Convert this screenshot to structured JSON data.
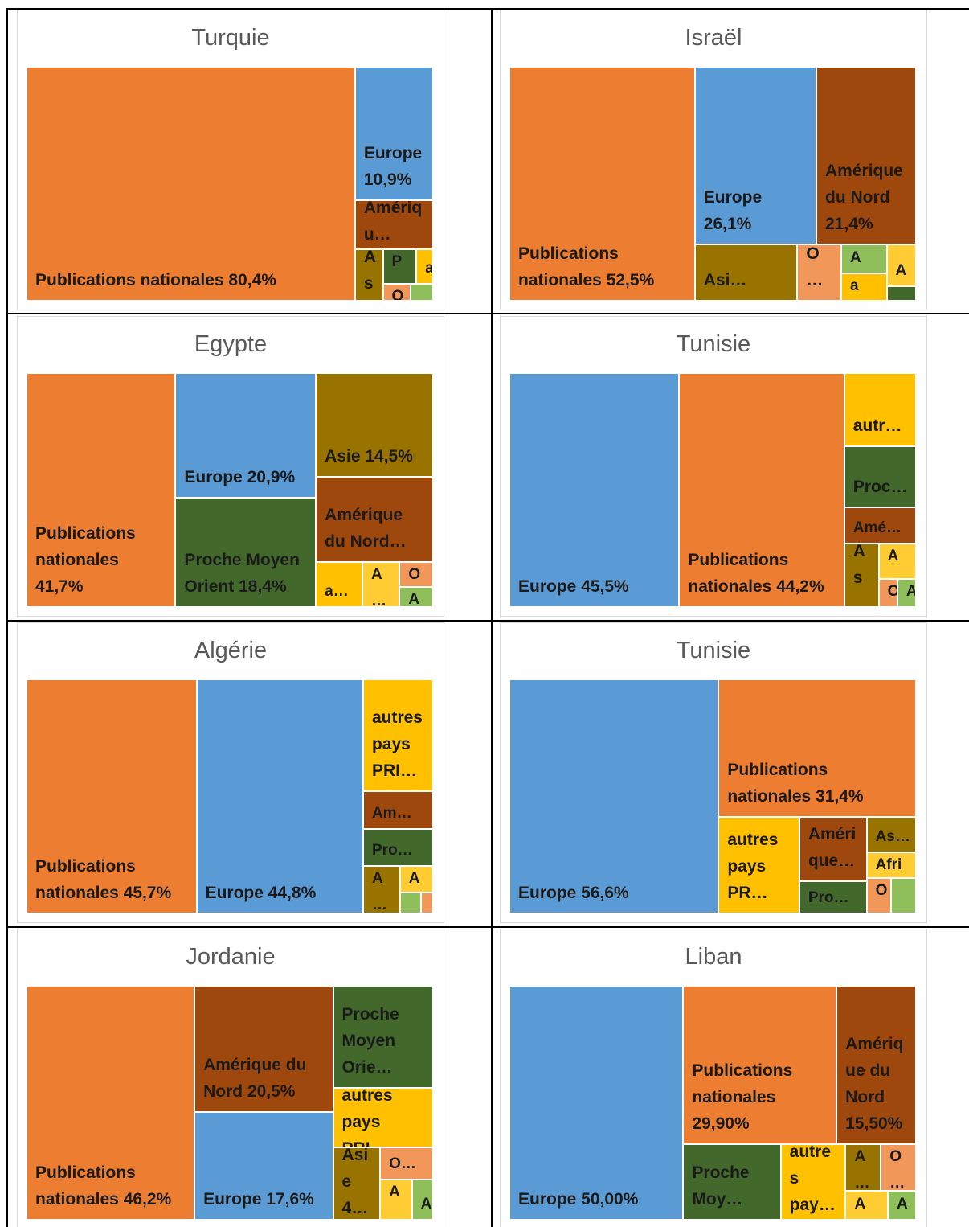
{
  "chart_data": [
    {
      "type": "treemap",
      "title": "Turquie",
      "categories": [
        "Publications nationales 80,4%",
        "Europe 10,9%",
        "Amériqu…",
        "As…",
        "P…",
        "a",
        "O",
        null
      ],
      "values": [
        80.4,
        10.9,
        4.0,
        1.5,
        1.2,
        0.6,
        0.5,
        0.4
      ],
      "colors": [
        "#ed7d31",
        "#5b9bd5",
        "#9e480e",
        "#997300",
        "#43682b",
        "#ffc000",
        "#f1975a",
        "#8fbf5b"
      ]
    },
    {
      "type": "treemap",
      "title": "Israël",
      "categories": [
        "Publications nationales 52,5%",
        "Europe 26,1%",
        "Amérique du Nord 21,4%",
        "Asi…",
        "O…",
        "A",
        "a",
        "A",
        null
      ],
      "values": [
        52.5,
        26.1,
        21.4,
        7.0,
        3.0,
        1.6,
        1.5,
        1.5,
        0.5
      ],
      "colors": [
        "#ed7d31",
        "#5b9bd5",
        "#9e480e",
        "#997300",
        "#f1975a",
        "#8fbf5b",
        "#ffc000",
        "#ffcd33",
        "#43682b"
      ]
    },
    {
      "type": "treemap",
      "title": "Egypte",
      "categories": [
        "Publications nationales 41,7%",
        "Europe 20,9%",
        "Proche Moyen Orient 18,4%",
        "Asie 14,5%",
        "Amérique du Nord…",
        "a…",
        "A…",
        "O…",
        "A"
      ],
      "values": [
        41.7,
        20.9,
        18.4,
        14.5,
        12.0,
        2.5,
        2.0,
        1.0,
        0.8
      ],
      "colors": [
        "#ed7d31",
        "#5b9bd5",
        "#43682b",
        "#997300",
        "#9e480e",
        "#ffc000",
        "#ffcd33",
        "#f1975a",
        "#8fbf5b"
      ]
    },
    {
      "type": "treemap",
      "title": "Tunisie",
      "categories": [
        "Europe 45,5%",
        "Publications nationales 44,2%",
        "autr…",
        "Proc…",
        "Amé…",
        "As…",
        "A…",
        "O",
        "A"
      ],
      "values": [
        45.5,
        44.2,
        6.0,
        5.0,
        3.0,
        2.5,
        1.5,
        0.6,
        0.6
      ],
      "colors": [
        "#5b9bd5",
        "#ed7d31",
        "#ffc000",
        "#43682b",
        "#9e480e",
        "#997300",
        "#ffcd33",
        "#f1975a",
        "#8fbf5b"
      ]
    },
    {
      "type": "treemap",
      "title": "Algérie",
      "categories": [
        "Publications nationales 45,7%",
        "Europe 44,8%",
        "autres pays PRI…",
        "Am…",
        "Pro…",
        "A…",
        "A…",
        null,
        null
      ],
      "values": [
        45.7,
        44.8,
        9.0,
        3.0,
        3.0,
        2.0,
        1.0,
        0.5,
        0.3
      ],
      "colors": [
        "#ed7d31",
        "#5b9bd5",
        "#ffc000",
        "#9e480e",
        "#43682b",
        "#997300",
        "#ffcd33",
        "#8fbf5b",
        "#f1975a"
      ]
    },
    {
      "type": "treemap",
      "title": "Tunisie",
      "categories": [
        "Europe 56,6%",
        "Publications nationales 31,4%",
        "autres pays PR…",
        "Amérique…",
        "Pro…",
        "As…",
        "Afri…",
        "Oc",
        null
      ],
      "values": [
        56.6,
        31.4,
        9.0,
        5.0,
        2.5,
        2.0,
        1.5,
        1.0,
        1.0
      ],
      "colors": [
        "#5b9bd5",
        "#ed7d31",
        "#ffc000",
        "#9e480e",
        "#43682b",
        "#997300",
        "#ffcd33",
        "#f1975a",
        "#8fbf5b"
      ]
    },
    {
      "type": "treemap",
      "title": "Jordanie",
      "categories": [
        "Publications nationales 46,2%",
        "Amérique du Nord 20,5%",
        "Europe 17,6%",
        "Proche Moyen Orie…",
        "autres pays PRI…",
        "Asie 4…",
        "O…",
        "A…",
        "A"
      ],
      "values": [
        46.2,
        20.5,
        17.6,
        12.0,
        7.0,
        4.0,
        2.0,
        1.5,
        1.0
      ],
      "colors": [
        "#ed7d31",
        "#9e480e",
        "#5b9bd5",
        "#43682b",
        "#ffc000",
        "#997300",
        "#f1975a",
        "#ffcd33",
        "#8fbf5b"
      ]
    },
    {
      "type": "treemap",
      "title": "Liban",
      "categories": [
        "Europe 50,00%",
        "Publications nationales 29,90%",
        "Amérique du Nord 15,50%",
        "Proche Moy…",
        "autres pay…",
        "A…",
        "O…",
        "A",
        "A"
      ],
      "values": [
        50.0,
        29.9,
        15.5,
        9.0,
        6.0,
        2.0,
        2.0,
        1.5,
        1.0
      ],
      "colors": [
        "#5b9bd5",
        "#ed7d31",
        "#9e480e",
        "#43682b",
        "#ffc000",
        "#997300",
        "#f1975a",
        "#ffcd33",
        "#8fbf5b"
      ]
    }
  ]
}
